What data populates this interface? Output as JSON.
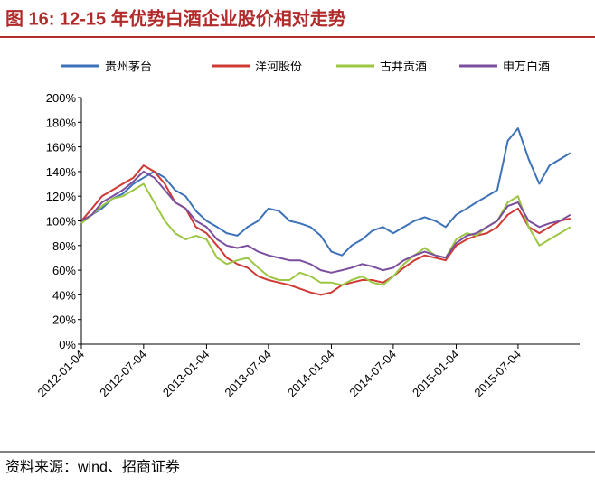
{
  "title": "图 16:  12-15 年优势白酒企业股价相对走势",
  "source": "资料来源：wind、招商证券",
  "chart_data": {
    "type": "line",
    "x": [
      "2012-01-04",
      "2012-02-04",
      "2012-03-04",
      "2012-04-04",
      "2012-05-04",
      "2012-06-04",
      "2012-07-04",
      "2012-08-04",
      "2012-09-04",
      "2012-10-04",
      "2012-11-04",
      "2012-12-04",
      "2013-01-04",
      "2013-02-04",
      "2013-03-04",
      "2013-04-04",
      "2013-05-04",
      "2013-06-04",
      "2013-07-04",
      "2013-08-04",
      "2013-09-04",
      "2013-10-04",
      "2013-11-04",
      "2013-12-04",
      "2014-01-04",
      "2014-02-04",
      "2014-03-04",
      "2014-04-04",
      "2014-05-04",
      "2014-06-04",
      "2014-07-04",
      "2014-08-04",
      "2014-09-04",
      "2014-10-04",
      "2014-11-04",
      "2014-12-04",
      "2015-01-04",
      "2015-02-04",
      "2015-03-04",
      "2015-04-04",
      "2015-05-04",
      "2015-06-04",
      "2015-07-04",
      "2015-08-04",
      "2015-09-04",
      "2015-10-04",
      "2015-11-04",
      "2015-12-04"
    ],
    "series": [
      {
        "name": "贵州茅台",
        "color": "#3d72b8",
        "values": [
          100,
          105,
          110,
          118,
          122,
          130,
          135,
          140,
          135,
          125,
          120,
          108,
          100,
          95,
          90,
          88,
          95,
          100,
          110,
          108,
          100,
          98,
          95,
          88,
          75,
          72,
          80,
          85,
          92,
          95,
          90,
          95,
          100,
          103,
          100,
          95,
          105,
          110,
          115,
          120,
          125,
          165,
          175,
          150,
          130,
          145,
          150,
          155
        ]
      },
      {
        "name": "洋河股份",
        "color": "#cf3a35",
        "values": [
          100,
          110,
          120,
          125,
          130,
          135,
          145,
          140,
          130,
          115,
          110,
          95,
          90,
          80,
          70,
          65,
          62,
          55,
          52,
          50,
          48,
          45,
          42,
          40,
          42,
          48,
          50,
          52,
          52,
          50,
          55,
          62,
          68,
          72,
          70,
          68,
          80,
          85,
          88,
          90,
          95,
          105,
          110,
          95,
          90,
          95,
          100,
          102
        ]
      },
      {
        "name": "古井贡酒",
        "color": "#9cc644",
        "values": [
          98,
          105,
          112,
          118,
          120,
          125,
          130,
          115,
          100,
          90,
          85,
          88,
          85,
          70,
          65,
          68,
          70,
          62,
          55,
          52,
          52,
          58,
          55,
          50,
          50,
          48,
          52,
          55,
          50,
          48,
          55,
          65,
          72,
          78,
          72,
          70,
          85,
          90,
          88,
          95,
          100,
          115,
          120,
          95,
          80,
          85,
          90,
          95
        ]
      },
      {
        "name": "申万白酒",
        "color": "#7b4f9e",
        "values": [
          100,
          105,
          115,
          120,
          125,
          132,
          140,
          135,
          125,
          115,
          110,
          100,
          95,
          85,
          80,
          78,
          80,
          75,
          72,
          70,
          68,
          68,
          65,
          60,
          58,
          60,
          62,
          65,
          63,
          60,
          62,
          68,
          72,
          75,
          72,
          70,
          82,
          88,
          90,
          95,
          100,
          112,
          115,
          100,
          95,
          98,
          100,
          105
        ]
      }
    ],
    "xlim": [
      "2012-01-04",
      "2015-12-31"
    ],
    "xticks": [
      "2012-01-04",
      "2012-07-04",
      "2013-01-04",
      "2013-07-04",
      "2014-01-04",
      "2014-07-04",
      "2015-01-04",
      "2015-07-04"
    ],
    "ylim": [
      0,
      200
    ],
    "yticks": [
      {
        "value": 0,
        "label": "0%"
      },
      {
        "value": 20,
        "label": "20%"
      },
      {
        "value": 40,
        "label": "40%"
      },
      {
        "value": 60,
        "label": "60%"
      },
      {
        "value": 80,
        "label": "80%"
      },
      {
        "value": 100,
        "label": "100%"
      },
      {
        "value": 120,
        "label": "120%"
      },
      {
        "value": 140,
        "label": "140%"
      },
      {
        "value": 160,
        "label": "160%"
      },
      {
        "value": 180,
        "label": "180%"
      },
      {
        "value": 200,
        "label": "200%"
      }
    ],
    "legend": "top"
  }
}
